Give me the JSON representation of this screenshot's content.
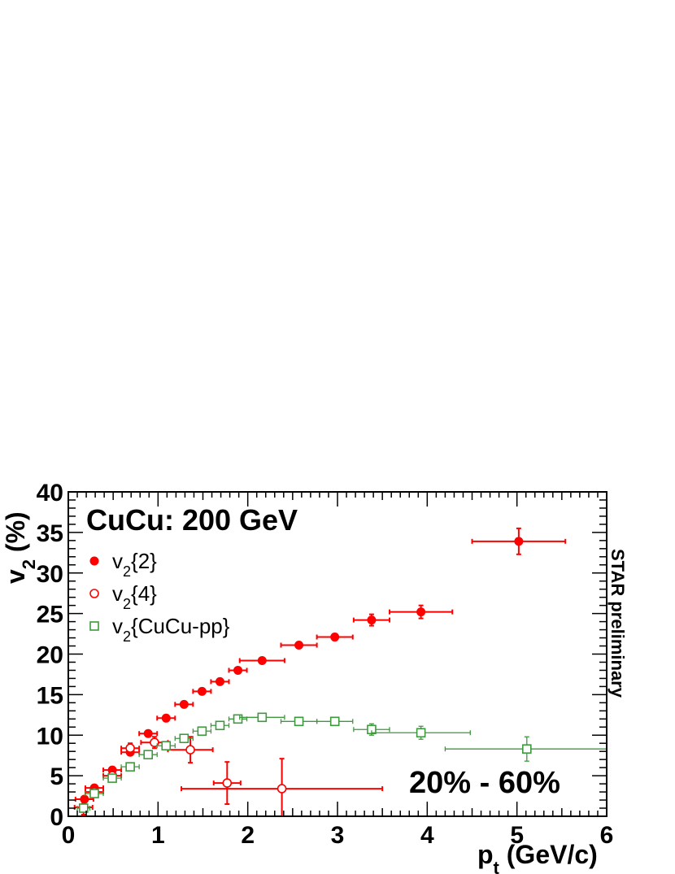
{
  "chart_data": {
    "type": "scatter",
    "title": "CuCu: 200 GeV",
    "annotations": [
      "20% - 60%",
      "STAR preliminary"
    ],
    "xlabel": {
      "main": "p",
      "sub": "t",
      "rest": " (GeV/c)"
    },
    "ylabel": {
      "main": "v",
      "sub": "2",
      "rest": " (%)"
    },
    "xlim": [
      0,
      6
    ],
    "ylim": [
      0,
      40
    ],
    "xticks": [
      0,
      1,
      2,
      3,
      4,
      5,
      6
    ],
    "yticks": [
      0,
      5,
      10,
      15,
      20,
      25,
      30,
      35,
      40
    ],
    "legend_position": "top-left",
    "grid": false,
    "series": [
      {
        "name": {
          "main": "v",
          "sub": "2",
          "rest": "{2}"
        },
        "marker": "filled-circle",
        "color": "#ff0000",
        "points": [
          {
            "x": 0.18,
            "y": 2.1,
            "xerr": 0.1,
            "yerr": 0.2
          },
          {
            "x": 0.29,
            "y": 3.5,
            "xerr": 0.1,
            "yerr": 0.2
          },
          {
            "x": 0.49,
            "y": 5.7,
            "xerr": 0.1,
            "yerr": 0.2
          },
          {
            "x": 0.69,
            "y": 7.9,
            "xerr": 0.1,
            "yerr": 0.2
          },
          {
            "x": 0.89,
            "y": 10.2,
            "xerr": 0.1,
            "yerr": 0.2
          },
          {
            "x": 1.09,
            "y": 12.1,
            "xerr": 0.1,
            "yerr": 0.2
          },
          {
            "x": 1.29,
            "y": 13.8,
            "xerr": 0.1,
            "yerr": 0.2
          },
          {
            "x": 1.49,
            "y": 15.4,
            "xerr": 0.1,
            "yerr": 0.2
          },
          {
            "x": 1.69,
            "y": 16.6,
            "xerr": 0.1,
            "yerr": 0.2
          },
          {
            "x": 1.89,
            "y": 18.0,
            "xerr": 0.1,
            "yerr": 0.2
          },
          {
            "x": 2.16,
            "y": 19.2,
            "xerr": 0.25,
            "yerr": 0.3
          },
          {
            "x": 2.57,
            "y": 21.1,
            "xerr": 0.2,
            "yerr": 0.3
          },
          {
            "x": 2.97,
            "y": 22.1,
            "xerr": 0.2,
            "yerr": 0.4
          },
          {
            "x": 3.38,
            "y": 24.2,
            "xerr": 0.2,
            "yerr": 0.7
          },
          {
            "x": 3.93,
            "y": 25.2,
            "xerr": 0.35,
            "yerr": 0.8
          },
          {
            "x": 5.02,
            "y": 33.9,
            "xerr": 0.52,
            "yerr": 1.6
          }
        ]
      },
      {
        "name": {
          "main": "v",
          "sub": "2",
          "rest": "{4}"
        },
        "marker": "open-circle",
        "color": "#ff0000",
        "points": [
          {
            "x": 0.17,
            "y": 1.1,
            "xerr": 0.1,
            "yerr": 0.9
          },
          {
            "x": 0.29,
            "y": 3.0,
            "xerr": 0.1,
            "yerr": 0.5
          },
          {
            "x": 0.49,
            "y": 5.0,
            "xerr": 0.1,
            "yerr": 0.5
          },
          {
            "x": 0.69,
            "y": 8.4,
            "xerr": 0.1,
            "yerr": 0.6
          },
          {
            "x": 0.96,
            "y": 9.1,
            "xerr": 0.15,
            "yerr": 0.7
          },
          {
            "x": 1.36,
            "y": 8.2,
            "xerr": 0.25,
            "yerr": 1.6
          },
          {
            "x": 1.77,
            "y": 4.1,
            "xerr": 0.15,
            "yerr": 2.6
          },
          {
            "x": 2.38,
            "y": 3.4,
            "xerr": 1.12,
            "yerr": 3.7
          }
        ]
      },
      {
        "name": {
          "main": "v",
          "sub": "2",
          "rest": "{CuCu-pp}"
        },
        "marker": "open-square",
        "color": "#3c9a3c",
        "points": [
          {
            "x": 0.17,
            "y": 1.0,
            "xerr": 0.07,
            "yerr": 0.3
          },
          {
            "x": 0.29,
            "y": 2.8,
            "xerr": 0.1,
            "yerr": 0.3
          },
          {
            "x": 0.49,
            "y": 4.7,
            "xerr": 0.1,
            "yerr": 0.3
          },
          {
            "x": 0.69,
            "y": 6.1,
            "xerr": 0.1,
            "yerr": 0.3
          },
          {
            "x": 0.89,
            "y": 7.6,
            "xerr": 0.1,
            "yerr": 0.3
          },
          {
            "x": 1.09,
            "y": 8.7,
            "xerr": 0.1,
            "yerr": 0.3
          },
          {
            "x": 1.29,
            "y": 9.6,
            "xerr": 0.1,
            "yerr": 0.3
          },
          {
            "x": 1.49,
            "y": 10.5,
            "xerr": 0.1,
            "yerr": 0.3
          },
          {
            "x": 1.69,
            "y": 11.2,
            "xerr": 0.1,
            "yerr": 0.3
          },
          {
            "x": 1.89,
            "y": 12.0,
            "xerr": 0.1,
            "yerr": 0.3
          },
          {
            "x": 2.16,
            "y": 12.2,
            "xerr": 0.25,
            "yerr": 0.3
          },
          {
            "x": 2.57,
            "y": 11.7,
            "xerr": 0.2,
            "yerr": 0.3
          },
          {
            "x": 2.97,
            "y": 11.7,
            "xerr": 0.2,
            "yerr": 0.4
          },
          {
            "x": 3.38,
            "y": 10.7,
            "xerr": 0.2,
            "yerr": 0.7
          },
          {
            "x": 3.93,
            "y": 10.3,
            "xerr": 0.55,
            "yerr": 0.8
          },
          {
            "x": 5.11,
            "y": 8.3,
            "xerr": 0.91,
            "yerr": 1.5
          }
        ]
      }
    ]
  }
}
